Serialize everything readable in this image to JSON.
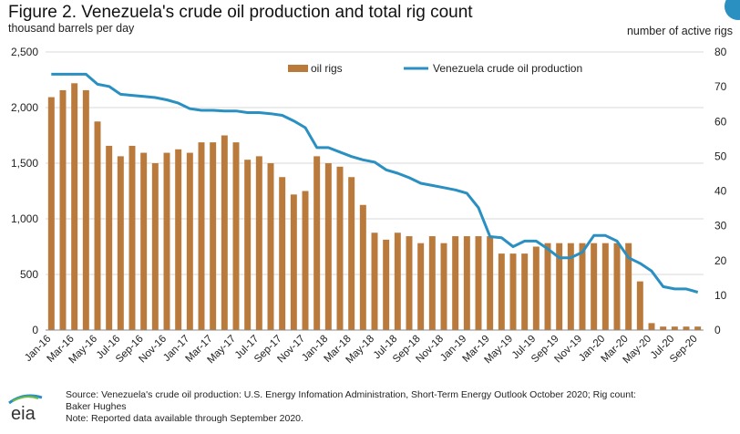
{
  "header": {
    "title": "Figure 2. Venezuela's crude oil production and total rig count",
    "left_unit": "thousand barrels per day",
    "right_unit": "number of active rigs"
  },
  "footer": {
    "source_line1": "Source: Venezuela's crude oil production: U.S. Energy Infomation Administration, Short-Term Energy Outlook October 2020; Rig count:",
    "source_line2": "Baker Hughes",
    "note": "Note: Reported data available through September 2020.",
    "logo_text": "eia"
  },
  "colors": {
    "bars": "#b97a3c",
    "line": "#2a8fc1",
    "grid": "#d9d9d9"
  },
  "chart_data": {
    "type": "bar",
    "title": "Figure 2. Venezuela's crude oil production and total rig count",
    "legend_position": "top",
    "grid": true,
    "months": [
      "Jan-16",
      "Feb-16",
      "Mar-16",
      "Apr-16",
      "May-16",
      "Jun-16",
      "Jul-16",
      "Aug-16",
      "Sep-16",
      "Oct-16",
      "Nov-16",
      "Dec-16",
      "Jan-17",
      "Feb-17",
      "Mar-17",
      "Apr-17",
      "May-17",
      "Jun-17",
      "Jul-17",
      "Aug-17",
      "Sep-17",
      "Oct-17",
      "Nov-17",
      "Dec-17",
      "Jan-18",
      "Feb-18",
      "Mar-18",
      "Apr-18",
      "May-18",
      "Jun-18",
      "Jul-18",
      "Aug-18",
      "Sep-18",
      "Oct-18",
      "Nov-18",
      "Dec-18",
      "Jan-19",
      "Feb-19",
      "Mar-19",
      "Apr-19",
      "May-19",
      "Jun-19",
      "Jul-19",
      "Aug-19",
      "Sep-19",
      "Oct-19",
      "Nov-19",
      "Dec-19",
      "Jan-20",
      "Feb-20",
      "Mar-20",
      "Apr-20",
      "May-20",
      "Jun-20",
      "Jul-20",
      "Aug-20",
      "Sep-20"
    ],
    "x_tick_labels": [
      "Jan-16",
      "Mar-16",
      "May-16",
      "Jul-16",
      "Sep-16",
      "Nov-16",
      "Jan-17",
      "Mar-17",
      "May-17",
      "Jul-17",
      "Sep-17",
      "Nov-17",
      "Jan-18",
      "Mar-18",
      "May-18",
      "Jul-18",
      "Sep-18",
      "Nov-18",
      "Jan-19",
      "Mar-19",
      "May-19",
      "Jul-19",
      "Sep-19",
      "Nov-19",
      "Jan-20",
      "Mar-20",
      "May-20",
      "Jul-20",
      "Sep-20"
    ],
    "y_left": {
      "ylim": [
        0,
        2500
      ],
      "ticks": [
        "0",
        "500",
        "1,000",
        "1,500",
        "2,000",
        "2,500"
      ]
    },
    "y_right": {
      "ylim": [
        0,
        80
      ],
      "ticks": [
        "0",
        "10",
        "20",
        "30",
        "40",
        "50",
        "60",
        "70",
        "80"
      ]
    },
    "series": [
      {
        "name": "oil rigs",
        "kind": "bar",
        "axis": "right",
        "values": [
          67,
          69,
          71,
          69,
          60,
          53,
          50,
          53,
          51,
          48,
          51,
          52,
          51,
          54,
          54,
          56,
          54,
          49,
          50,
          48,
          44,
          39,
          40,
          50,
          48,
          47,
          44,
          36,
          28,
          26,
          28,
          27,
          25,
          27,
          25,
          27,
          27,
          27,
          27,
          22,
          22,
          22,
          24,
          25,
          25,
          25,
          25,
          25,
          25,
          25,
          25,
          14,
          2,
          1,
          1,
          1,
          1
        ]
      },
      {
        "name": "Venezuela crude oil production",
        "kind": "line",
        "axis": "left",
        "values": [
          2300,
          2300,
          2300,
          2300,
          2210,
          2190,
          2120,
          2110,
          2100,
          2090,
          2070,
          2040,
          1990,
          1975,
          1975,
          1970,
          1970,
          1955,
          1955,
          1945,
          1930,
          1880,
          1820,
          1640,
          1640,
          1600,
          1560,
          1530,
          1510,
          1440,
          1410,
          1370,
          1320,
          1300,
          1280,
          1260,
          1230,
          1100,
          840,
          830,
          750,
          800,
          800,
          730,
          650,
          650,
          700,
          850,
          850,
          800,
          650,
          600,
          530,
          390,
          370,
          370,
          340
        ]
      }
    ]
  }
}
